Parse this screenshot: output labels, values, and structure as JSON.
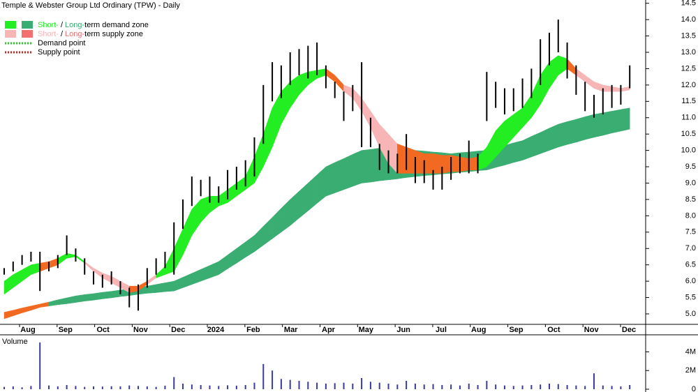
{
  "chart_data": {
    "type": "zone-bars",
    "title": "Temple & Webster Group Ltd Ordinary (TPW) - Daily",
    "legend": {
      "demand_zone": {
        "short": "Short-",
        "sep": "/",
        "long": "Long-",
        "rest": "term demand zone"
      },
      "supply_zone": {
        "short": "Short-",
        "sep": "/",
        "long": "Long-",
        "rest": "term supply zone"
      },
      "demand_point": "Demand point",
      "supply_point": "Supply point"
    },
    "x_labels": [
      "Aug",
      "Sep",
      "Oct",
      "Nov",
      "Dec",
      "2024",
      "Feb",
      "Mar",
      "Apr",
      "May",
      "Jun",
      "Jul",
      "Aug",
      "Sep",
      "Oct",
      "Nov",
      "Dec"
    ],
    "ylim": [
      4.68,
      14.6
    ],
    "yticks": [
      {
        "value": 5,
        "label": "5.0"
      },
      5.5,
      {
        "value": 6,
        "label": "6.0"
      },
      6.5,
      {
        "value": 7,
        "label": "7.0"
      },
      7.5,
      {
        "value": 8,
        "label": "8.0"
      },
      8.5,
      {
        "value": 9,
        "label": "9.0"
      },
      9.5,
      {
        "value": 10,
        "label": "10.0"
      },
      10.5,
      {
        "value": 11,
        "label": "11.0"
      },
      11.5,
      {
        "value": 12,
        "label": "12.0"
      },
      12.5,
      {
        "value": 13,
        "label": "13.0"
      },
      13.5,
      {
        "value": 14,
        "label": "14.0"
      },
      14.5
    ],
    "price_color": "#000000",
    "high": [
      6.4,
      6.6,
      6.8,
      6.9,
      6.9,
      6.6,
      6.8,
      7.4,
      7.0,
      6.7,
      6.3,
      6.2,
      6.3,
      6.0,
      5.8,
      5.9,
      6.4,
      6.7,
      6.9,
      7.8,
      8.5,
      9.2,
      9.1,
      9.2,
      8.9,
      9.4,
      9.5,
      9.7,
      10.4,
      12.0,
      12.7,
      12.6,
      13.0,
      13.1,
      13.2,
      13.3,
      12.6,
      12.1,
      11.8,
      12.0,
      12.7,
      11.0,
      10.2,
      10.0,
      9.9,
      10.5,
      9.8,
      9.7,
      9.4,
      9.5,
      9.8,
      9.9,
      10.3,
      9.9,
      12.4,
      12.1,
      11.9,
      11.9,
      12.2,
      12.5,
      13.4,
      13.6,
      14.0,
      13.3,
      12.6,
      12.1,
      11.7,
      11.9,
      12.0,
      12.0,
      12.6
    ],
    "low": [
      6.2,
      6.3,
      6.5,
      6.6,
      5.7,
      6.3,
      6.4,
      6.8,
      6.6,
      6.2,
      5.9,
      5.8,
      5.9,
      5.6,
      5.2,
      5.1,
      5.8,
      6.2,
      6.4,
      6.2,
      7.6,
      8.3,
      8.6,
      8.4,
      8.4,
      8.5,
      8.8,
      8.9,
      9.2,
      10.2,
      11.5,
      11.6,
      12.0,
      12.3,
      12.2,
      12.3,
      11.9,
      11.6,
      10.9,
      11.2,
      10.1,
      10.1,
      9.4,
      9.3,
      9.3,
      9.4,
      9.0,
      9.0,
      8.8,
      8.8,
      9.1,
      9.3,
      9.3,
      9.3,
      10.9,
      11.3,
      11.1,
      11.2,
      11.3,
      11.6,
      12.0,
      12.6,
      13.0,
      12.2,
      11.7,
      11.2,
      11.0,
      11.1,
      11.3,
      11.4,
      11.9
    ],
    "zones": [
      {
        "upper": [
          5.05,
          5.11,
          5.18,
          5.24,
          5.3,
          5.36,
          5.43,
          5.49,
          5.55,
          5.59,
          5.62,
          5.66,
          5.69,
          5.73,
          5.76,
          5.8,
          5.85,
          5.9,
          5.95,
          6.0,
          6.12,
          6.24,
          6.36,
          6.48,
          6.6,
          6.8,
          7.0,
          7.2,
          7.4,
          7.68,
          7.95,
          8.23,
          8.5,
          8.75,
          9.0,
          9.25,
          9.5,
          9.63,
          9.75,
          9.88,
          10.0,
          10.03,
          10.07,
          10.1,
          10.07,
          10.03,
          10.0,
          9.98,
          9.95,
          9.93,
          9.9,
          9.93,
          9.95,
          9.98,
          10.0,
          10.08,
          10.15,
          10.23,
          10.3,
          10.43,
          10.55,
          10.68,
          10.8,
          10.88,
          10.95,
          11.03,
          11.1,
          11.15,
          11.2,
          11.25,
          11.3
        ],
        "lower": [
          4.85,
          4.94,
          5.03,
          5.11,
          5.2,
          5.24,
          5.28,
          5.31,
          5.35,
          5.39,
          5.42,
          5.46,
          5.49,
          5.53,
          5.56,
          5.6,
          5.63,
          5.65,
          5.68,
          5.7,
          5.8,
          5.9,
          6.0,
          6.1,
          6.2,
          6.38,
          6.55,
          6.73,
          6.9,
          7.1,
          7.3,
          7.5,
          7.7,
          7.93,
          8.15,
          8.38,
          8.6,
          8.7,
          8.8,
          8.9,
          9.0,
          9.03,
          9.07,
          9.1,
          9.13,
          9.17,
          9.2,
          9.23,
          9.25,
          9.28,
          9.3,
          9.33,
          9.35,
          9.38,
          9.4,
          9.48,
          9.55,
          9.63,
          9.7,
          9.8,
          9.9,
          10.0,
          10.1,
          10.18,
          10.25,
          10.33,
          10.4,
          10.46,
          10.53,
          10.59,
          10.65
        ],
        "colors": [
          "#f26a21",
          "#f26a21",
          "#f26a21",
          "#f26a21",
          "#f26a21",
          "#3aad72",
          "#3aad72",
          "#3aad72",
          "#3aad72",
          "#3aad72",
          "#3aad72",
          "#3aad72",
          "#3aad72",
          "#3aad72",
          "#3aad72",
          "#3aad72",
          "#3aad72",
          "#3aad72",
          "#3aad72",
          "#3aad72",
          "#3aad72",
          "#3aad72",
          "#3aad72",
          "#3aad72",
          "#3aad72",
          "#3aad72",
          "#3aad72",
          "#3aad72",
          "#3aad72",
          "#3aad72",
          "#3aad72",
          "#3aad72",
          "#3aad72",
          "#3aad72",
          "#3aad72",
          "#3aad72",
          "#3aad72",
          "#3aad72",
          "#3aad72",
          "#3aad72",
          "#3aad72",
          "#3aad72",
          "#3aad72",
          "#3aad72",
          "#3aad72",
          "#3aad72",
          "#3aad72",
          "#3aad72",
          "#3aad72",
          "#3aad72",
          "#3aad72",
          "#3aad72",
          "#3aad72",
          "#3aad72",
          "#3aad72",
          "#3aad72",
          "#3aad72",
          "#3aad72",
          "#3aad72",
          "#3aad72",
          "#3aad72",
          "#3aad72",
          "#3aad72",
          "#3aad72",
          "#3aad72",
          "#3aad72",
          "#3aad72",
          "#3aad72",
          "#3aad72",
          "#3aad72",
          "#3aad72"
        ]
      },
      {
        "upper": [
          6.0,
          6.2,
          6.35,
          6.5,
          6.55,
          6.6,
          6.7,
          6.85,
          6.8,
          6.6,
          6.4,
          6.25,
          6.15,
          6.0,
          5.85,
          5.85,
          6.0,
          6.2,
          6.45,
          7.0,
          7.6,
          8.2,
          8.5,
          8.6,
          8.6,
          8.8,
          9.0,
          9.2,
          9.8,
          10.5,
          11.3,
          11.8,
          12.1,
          12.3,
          12.4,
          12.45,
          12.5,
          12.3,
          12.0,
          11.9,
          11.6,
          11.2,
          10.8,
          10.5,
          10.2,
          10.1,
          10.0,
          9.9,
          9.9,
          9.85,
          9.85,
          9.8,
          9.75,
          9.8,
          10.1,
          10.6,
          10.9,
          11.1,
          11.3,
          11.7,
          12.3,
          12.7,
          12.9,
          12.8,
          12.5,
          12.3,
          12.1,
          12.0,
          11.95,
          11.9,
          11.95
        ],
        "lower": [
          5.6,
          5.8,
          6.0,
          6.2,
          6.3,
          6.4,
          6.5,
          6.7,
          6.75,
          6.55,
          6.3,
          6.1,
          5.95,
          5.8,
          5.65,
          5.7,
          5.9,
          6.1,
          6.2,
          6.3,
          6.8,
          7.4,
          7.8,
          8.1,
          8.3,
          8.4,
          8.6,
          8.8,
          9.0,
          9.5,
          10.1,
          10.8,
          11.3,
          11.7,
          12.0,
          12.2,
          12.3,
          12.1,
          11.8,
          11.6,
          11.2,
          10.7,
          10.1,
          9.6,
          9.3,
          9.3,
          9.3,
          9.3,
          9.3,
          9.3,
          9.35,
          9.35,
          9.4,
          9.4,
          9.5,
          9.8,
          10.1,
          10.4,
          10.7,
          11.0,
          11.4,
          11.9,
          12.3,
          12.5,
          12.3,
          12.1,
          11.9,
          11.8,
          11.8,
          11.8,
          11.85
        ],
        "colors": [
          "#22ee22",
          "#22ee22",
          "#22ee22",
          "#22ee22",
          "#f26a21",
          "#f26a21",
          "#22ee22",
          "#22ee22",
          "#22ee22",
          "#f7b5b5",
          "#f7b5b5",
          "#f7b5b5",
          "#f7b5b5",
          "#f7b5b5",
          "#f26a21",
          "#f26a21",
          "#f7b5b5",
          "#22ee22",
          "#22ee22",
          "#22ee22",
          "#22ee22",
          "#22ee22",
          "#22ee22",
          "#22ee22",
          "#22ee22",
          "#22ee22",
          "#22ee22",
          "#22ee22",
          "#22ee22",
          "#22ee22",
          "#22ee22",
          "#22ee22",
          "#22ee22",
          "#22ee22",
          "#22ee22",
          "#22ee22",
          "#f26a21",
          "#f26a21",
          "#f7b5b5",
          "#f7b5b5",
          "#f7b5b5",
          "#f7b5b5",
          "#f7b5b5",
          "#f7b5b5",
          "#f26a21",
          "#f26a21",
          "#f26a21",
          "#f26a21",
          "#f26a21",
          "#f26a21",
          "#f26a21",
          "#f26a21",
          "#f26a21",
          "#22ee22",
          "#22ee22",
          "#22ee22",
          "#22ee22",
          "#22ee22",
          "#22ee22",
          "#22ee22",
          "#22ee22",
          "#22ee22",
          "#22ee22",
          "#f26a21",
          "#f7b5b5",
          "#f7b5b5",
          "#f7b5b5",
          "#f7b5b5",
          "#f7b5b5",
          "#f7b5b5",
          "#f7b5b5"
        ]
      }
    ],
    "volume": {
      "title": "Volume",
      "color": "#3a3aa0",
      "ylim": [
        0,
        5600000
      ],
      "yticks": [
        {
          "value": 0,
          "label": "0"
        },
        {
          "value": 2000000,
          "label": "2M"
        },
        {
          "value": 4000000,
          "label": "4M"
        }
      ],
      "values": [
        250000,
        300000,
        200000,
        350000,
        5000000,
        400000,
        300000,
        450000,
        350000,
        250000,
        300000,
        280000,
        320000,
        300000,
        400000,
        350000,
        300000,
        250000,
        380000,
        1300000,
        600000,
        500000,
        450000,
        400000,
        350000,
        420000,
        380000,
        450000,
        700000,
        2700000,
        2000000,
        1100000,
        1000000,
        900000,
        800000,
        700000,
        600000,
        650000,
        700000,
        600000,
        1200000,
        800000,
        700000,
        600000,
        500000,
        900000,
        600000,
        500000,
        550000,
        450000,
        500000,
        400000,
        600000,
        450000,
        900000,
        500000,
        400000,
        350000,
        400000,
        450000,
        500000,
        600000,
        550000,
        450000,
        400000,
        350000,
        1700000,
        400000,
        350000,
        300000,
        450000
      ]
    }
  }
}
